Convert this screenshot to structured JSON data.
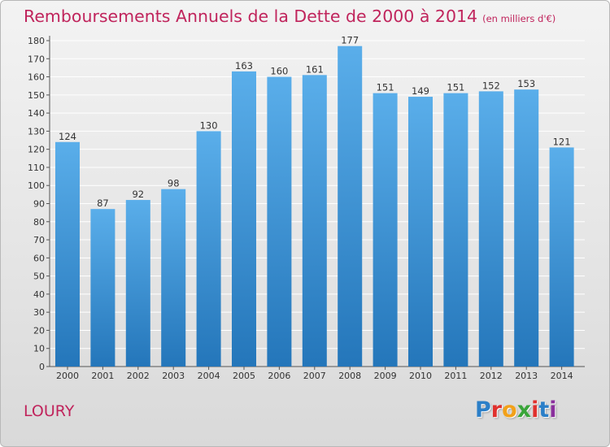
{
  "title": "Remboursements Annuels de la Dette de 2000 à 2014",
  "title_unit": "(en milliers d'€)",
  "commune": "LOURY",
  "logo": [
    "P",
    "r",
    "o",
    "x",
    "i",
    "t",
    "i"
  ],
  "colors": {
    "title": "#c0245c",
    "bar_top": "#5aaeea",
    "bar_bottom": "#2476ba",
    "grid": "#ffffff"
  },
  "chart_data": {
    "type": "bar",
    "categories": [
      "2000",
      "2001",
      "2002",
      "2003",
      "2004",
      "2005",
      "2006",
      "2007",
      "2008",
      "2009",
      "2010",
      "2011",
      "2012",
      "2013",
      "2014"
    ],
    "values": [
      124,
      87,
      92,
      98,
      130,
      163,
      160,
      161,
      177,
      151,
      149,
      151,
      152,
      153,
      121
    ],
    "data_labels": [
      "124",
      "87",
      "92",
      "98",
      "130",
      "163",
      "160",
      "161",
      "177",
      "151",
      "149",
      "151",
      "152",
      "153",
      "121"
    ],
    "yticks": [
      "0",
      "10",
      "20",
      "30",
      "40",
      "50",
      "60",
      "70",
      "80",
      "90",
      "100",
      "110",
      "120",
      "130",
      "140",
      "150",
      "160",
      "170",
      "180"
    ],
    "ylim": [
      0,
      180
    ],
    "grid": true,
    "legend": "none"
  }
}
